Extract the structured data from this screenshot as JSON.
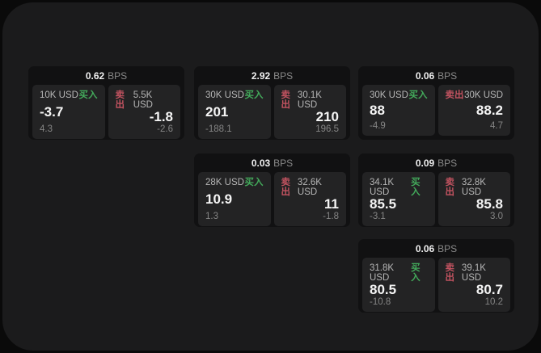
{
  "colors": {
    "buy": "#43aa5b",
    "sell": "#c25360",
    "window_bg": "#1b1b1c",
    "card_bg": "#111112",
    "panel_bg": "#232324"
  },
  "cards": [
    {
      "bps_value": "0.62",
      "bps_unit": "BPS",
      "buy": {
        "amount": "10K USD",
        "label": "买入",
        "main": "-3.7",
        "sub": "4.3"
      },
      "sell": {
        "label": "卖出",
        "amount": "5.5K USD",
        "main": "-1.8",
        "sub": "-2.6"
      }
    },
    {
      "bps_value": "2.92",
      "bps_unit": "BPS",
      "buy": {
        "amount": "30K USD",
        "label": "买入",
        "main": "201",
        "sub": "-188.1"
      },
      "sell": {
        "label": "卖出",
        "amount": "30.1K USD",
        "main": "210",
        "sub": "196.5"
      }
    },
    {
      "bps_value": "0.06",
      "bps_unit": "BPS",
      "buy": {
        "amount": "30K USD",
        "label": "买入",
        "main": "88",
        "sub": "-4.9"
      },
      "sell": {
        "label": "卖出",
        "amount": "30K USD",
        "main": "88.2",
        "sub": "4.7"
      }
    },
    {
      "bps_value": "0.03",
      "bps_unit": "BPS",
      "buy": {
        "amount": "28K USD",
        "label": "买入",
        "main": "10.9",
        "sub": "1.3"
      },
      "sell": {
        "label": "卖出",
        "amount": "32.6K USD",
        "main": "11",
        "sub": "-1.8"
      }
    },
    {
      "bps_value": "0.09",
      "bps_unit": "BPS",
      "buy": {
        "amount": "34.1K USD",
        "label": "买入",
        "main": "85.5",
        "sub": "-3.1"
      },
      "sell": {
        "label": "卖出",
        "amount": "32.8K USD",
        "main": "85.8",
        "sub": "3.0"
      }
    },
    {
      "bps_value": "0.06",
      "bps_unit": "BPS",
      "buy": {
        "amount": "31.8K USD",
        "label": "买入",
        "main": "80.5",
        "sub": "-10.8"
      },
      "sell": {
        "label": "卖出",
        "amount": "39.1K USD",
        "main": "80.7",
        "sub": "10.2"
      }
    }
  ]
}
